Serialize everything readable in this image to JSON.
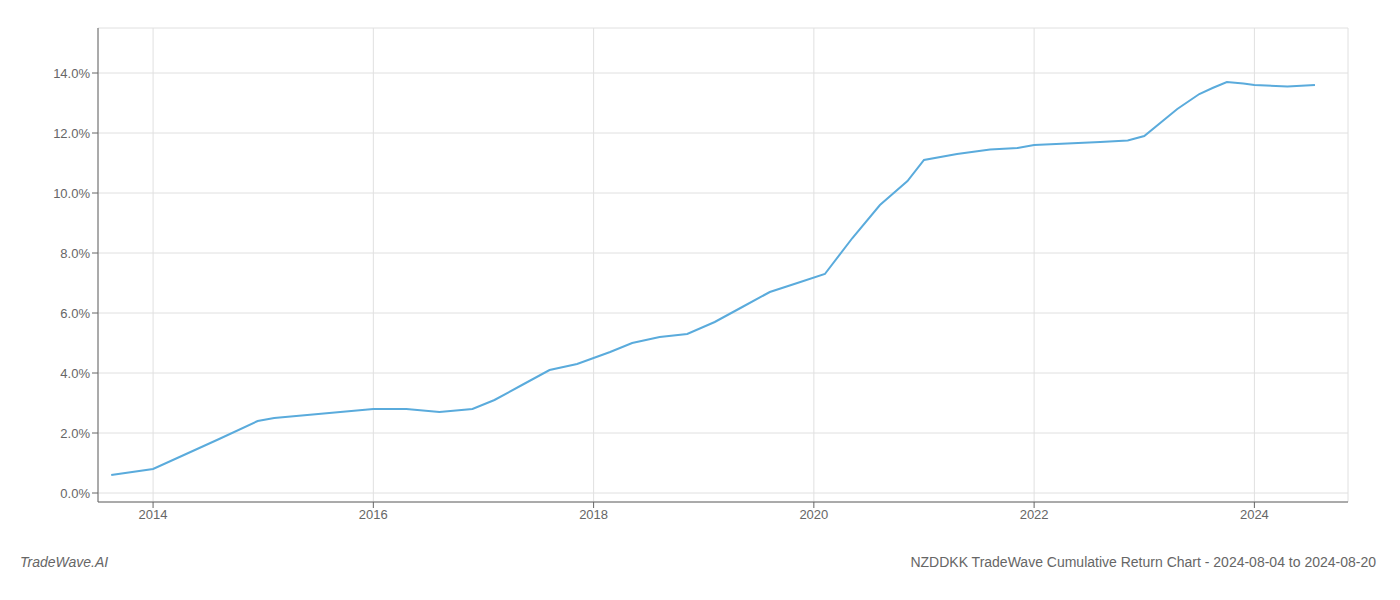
{
  "chart_data": {
    "type": "line",
    "title": "NZDDKK TradeWave Cumulative Return Chart - 2024-08-04 to 2024-08-20",
    "annotations": [
      "TradeWave.AI"
    ],
    "x": [
      2013.62,
      2014.0,
      2014.3,
      2014.6,
      2014.95,
      2015.1,
      2015.4,
      2015.7,
      2016.0,
      2016.3,
      2016.6,
      2016.9,
      2017.1,
      2017.35,
      2017.6,
      2017.85,
      2018.0,
      2018.15,
      2018.35,
      2018.6,
      2018.85,
      2019.1,
      2019.35,
      2019.6,
      2019.85,
      2020.1,
      2020.35,
      2020.6,
      2020.85,
      2021.0,
      2021.3,
      2021.6,
      2021.85,
      2022.0,
      2022.3,
      2022.6,
      2022.85,
      2023.0,
      2023.3,
      2023.5,
      2023.62,
      2023.75,
      2023.9,
      2024.0,
      2024.3,
      2024.55
    ],
    "values": [
      0.006,
      0.008,
      0.013,
      0.018,
      0.024,
      0.025,
      0.026,
      0.027,
      0.028,
      0.028,
      0.027,
      0.028,
      0.031,
      0.036,
      0.041,
      0.043,
      0.045,
      0.047,
      0.05,
      0.052,
      0.053,
      0.057,
      0.062,
      0.067,
      0.07,
      0.073,
      0.085,
      0.096,
      0.104,
      0.111,
      0.113,
      0.1145,
      0.115,
      0.116,
      0.1165,
      0.117,
      0.1175,
      0.119,
      0.128,
      0.133,
      0.135,
      0.137,
      0.1365,
      0.136,
      0.1355,
      0.136
    ],
    "color": "#5aabdc",
    "xlim": [
      2013.5,
      2024.85
    ],
    "ylim": [
      -0.003,
      0.155
    ],
    "xticks": [
      2014,
      2016,
      2018,
      2020,
      2022,
      2024
    ],
    "yticks": [
      {
        "value": 0.0,
        "label": "0.0%"
      },
      {
        "value": 0.02,
        "label": "2.0%"
      },
      {
        "value": 0.04,
        "label": "4.0%"
      },
      {
        "value": 0.06,
        "label": "6.0%"
      },
      {
        "value": 0.08,
        "label": "8.0%"
      },
      {
        "value": 0.1,
        "label": "10.0%"
      },
      {
        "value": 0.12,
        "label": "12.0%"
      },
      {
        "value": 0.14,
        "label": "14.0%"
      }
    ],
    "grid": true
  }
}
